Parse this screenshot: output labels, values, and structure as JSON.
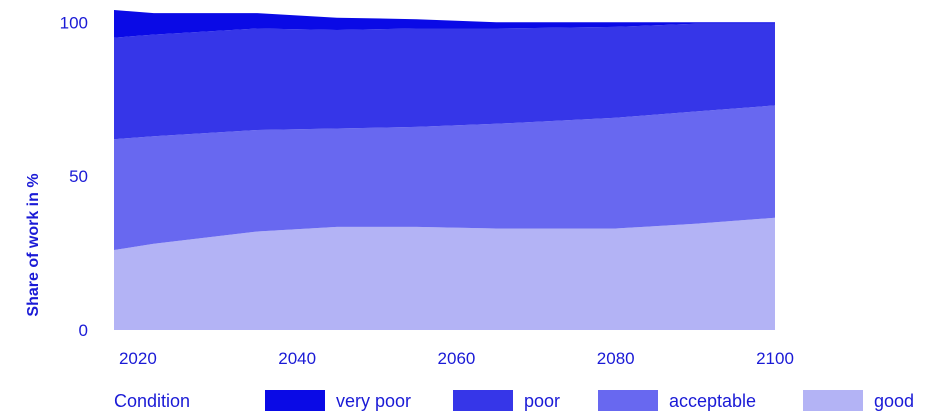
{
  "chart_data": {
    "type": "area",
    "stacked": true,
    "x": [
      2017,
      2022,
      2035,
      2045,
      2055,
      2065,
      2080,
      2090,
      2100
    ],
    "xticks": [
      "2020",
      "2040",
      "2060",
      "2080",
      "2100"
    ],
    "xtick_values": [
      2020,
      2040,
      2060,
      2080,
      2100
    ],
    "xlim": [
      2017,
      2100
    ],
    "ylim": [
      0,
      104
    ],
    "yticks": [
      "0",
      "50",
      "100"
    ],
    "ytick_values": [
      0,
      50,
      100
    ],
    "ylabel": "Share of work in %",
    "legend_title": "Condition",
    "legend_position": "bottom",
    "series": [
      {
        "name": "good",
        "color": "#b3b3f5",
        "values": [
          26,
          28,
          32,
          33.5,
          33.5,
          33,
          33,
          34.5,
          36.5
        ]
      },
      {
        "name": "acceptable",
        "color": "#6868f0",
        "values": [
          36,
          35,
          33,
          32,
          32.5,
          34,
          36,
          36.5,
          36.5
        ]
      },
      {
        "name": "poor",
        "color": "#3636e8",
        "values": [
          33,
          33,
          33,
          32,
          32,
          31,
          29.5,
          28.5,
          26.5
        ]
      },
      {
        "name": "very poor",
        "color": "#0a0ae6",
        "values": [
          9,
          7,
          5,
          4,
          3,
          2,
          1.5,
          0.5,
          0.5
        ]
      }
    ],
    "text_color": "#1a1ad6"
  }
}
